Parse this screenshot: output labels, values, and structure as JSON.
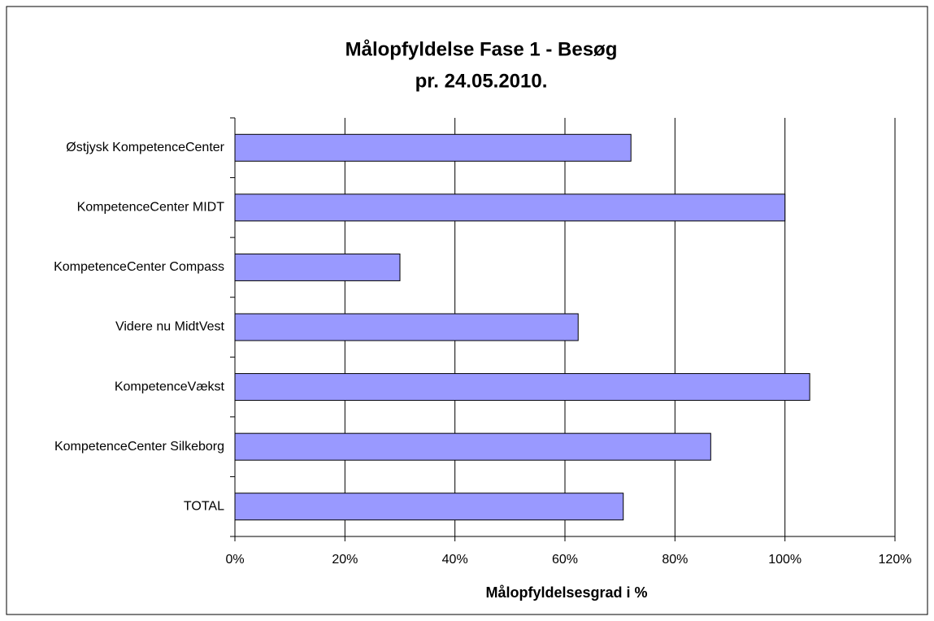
{
  "chart_data": {
    "type": "hbar",
    "title": "Målopfyldelse Fase 1 - Besøg",
    "subtitle": "pr. 24.05.2010.",
    "x_label": "Målopfyldelsesgrad i %",
    "categories": [
      "Østjysk KompetenceCenter",
      "KompetenceCenter MIDT",
      "KompetenceCenter Compass",
      "Videre nu MidtVest",
      "KompetenceVækst",
      "KompetenceCenter Silkeborg",
      "TOTAL"
    ],
    "values": [
      72,
      100,
      30,
      62.4,
      104.5,
      86.5,
      70.6
    ],
    "color": "#9999ff",
    "xlim": [
      0,
      120
    ],
    "xticks": [
      {
        "value": 0,
        "label": "0%"
      },
      {
        "value": 20,
        "label": "20%"
      },
      {
        "value": 40,
        "label": "40%"
      },
      {
        "value": 60,
        "label": "60%"
      },
      {
        "value": 80,
        "label": "80%"
      },
      {
        "value": 100,
        "label": "100%"
      },
      {
        "value": 120,
        "label": "120%"
      }
    ],
    "grid": true
  }
}
